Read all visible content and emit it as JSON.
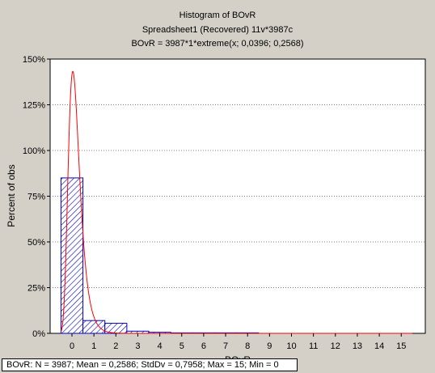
{
  "chart_data": {
    "type": "bar",
    "title": "Histogram of BOvR",
    "subtitle": "Spreadsheet1  (Recovered) 11v*3987c",
    "formula": "BOvR = 3987*1*extreme(x; 0,0396; 0,2568)",
    "xlabel": "BOvR",
    "ylabel": "Percent of obs",
    "x_ticks": [
      "0",
      "1",
      "2",
      "3",
      "4",
      "5",
      "6",
      "7",
      "8",
      "9",
      "10",
      "11",
      "12",
      "13",
      "14",
      "15"
    ],
    "y_ticks": [
      "0%",
      "25%",
      "50%",
      "75%",
      "100%",
      "125%",
      "150%"
    ],
    "ylim": [
      0,
      150
    ],
    "xlim": [
      -1,
      16
    ],
    "grid": true,
    "bin_width": 1,
    "bars": [
      {
        "x": 0,
        "value": 85
      },
      {
        "x": 1,
        "value": 7
      },
      {
        "x": 2,
        "value": 5.5
      },
      {
        "x": 3,
        "value": 1.2
      },
      {
        "x": 4,
        "value": 0.6
      },
      {
        "x": 5,
        "value": 0.15
      },
      {
        "x": 6,
        "value": 0.08
      },
      {
        "x": 7,
        "value": 0.05
      },
      {
        "x": 8,
        "value": 0.03
      }
    ],
    "fit_curve": {
      "distribution": "extreme",
      "location": 0.0396,
      "scale": 0.2568,
      "color": "#ff0000"
    },
    "bar_color": "#0000c0",
    "stats": "BOvR:   N = 3987; Mean = 0,2586; StdDv = 0,7958; Max = 15; Min = 0"
  }
}
